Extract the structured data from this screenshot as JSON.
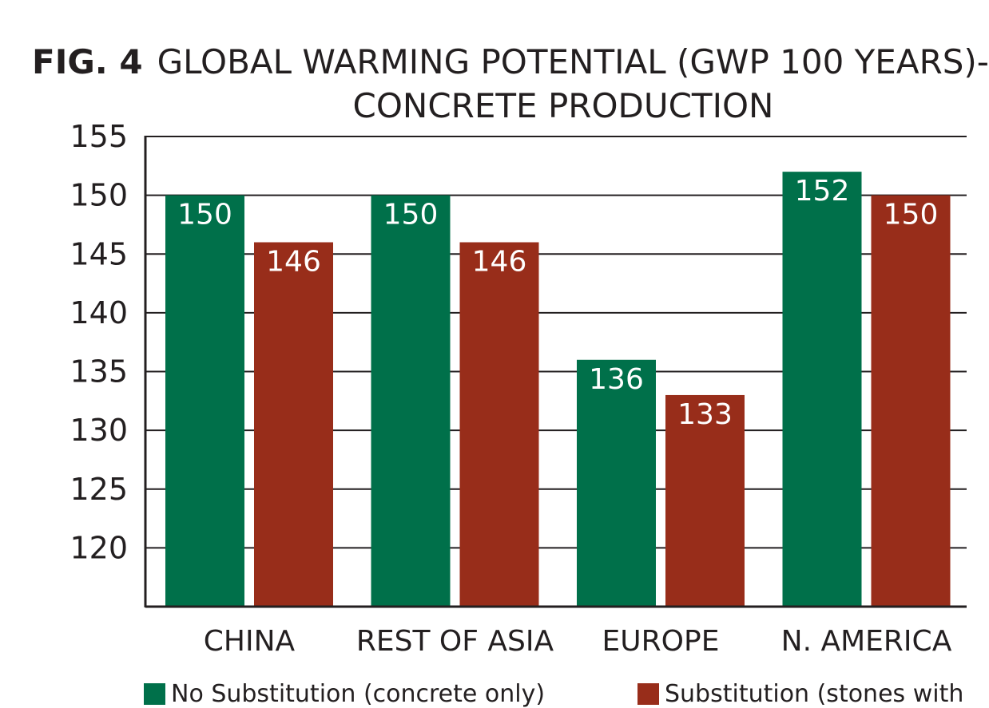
{
  "title": {
    "fig_label": "FIG. 4",
    "line1": "GLOBAL WARMING POTENTIAL (GWP 100 YEARS)-",
    "line2": "CONCRETE PRODUCTION"
  },
  "colors": {
    "no_substitution": "#00704a",
    "substitution": "#982d1a",
    "axis": "#231f20",
    "label_text": "#ffffff"
  },
  "chart_data": {
    "type": "bar",
    "title": "GLOBAL WARMING POTENTIAL (GWP 100 YEARS)- CONCRETE PRODUCTION",
    "categories": [
      "CHINA",
      "REST OF ASIA",
      "EUROPE",
      "N. AMERICA"
    ],
    "series": [
      {
        "name": "No Substitution (concrete only)",
        "values": [
          150,
          150,
          136,
          152
        ]
      },
      {
        "name": "Substitution (stones with",
        "values": [
          146,
          146,
          133,
          150
        ]
      }
    ],
    "ylim": [
      115,
      155
    ],
    "yticks": [
      155,
      150,
      145,
      140,
      135,
      130,
      125,
      120
    ],
    "grid": true,
    "legend": "bottom"
  }
}
